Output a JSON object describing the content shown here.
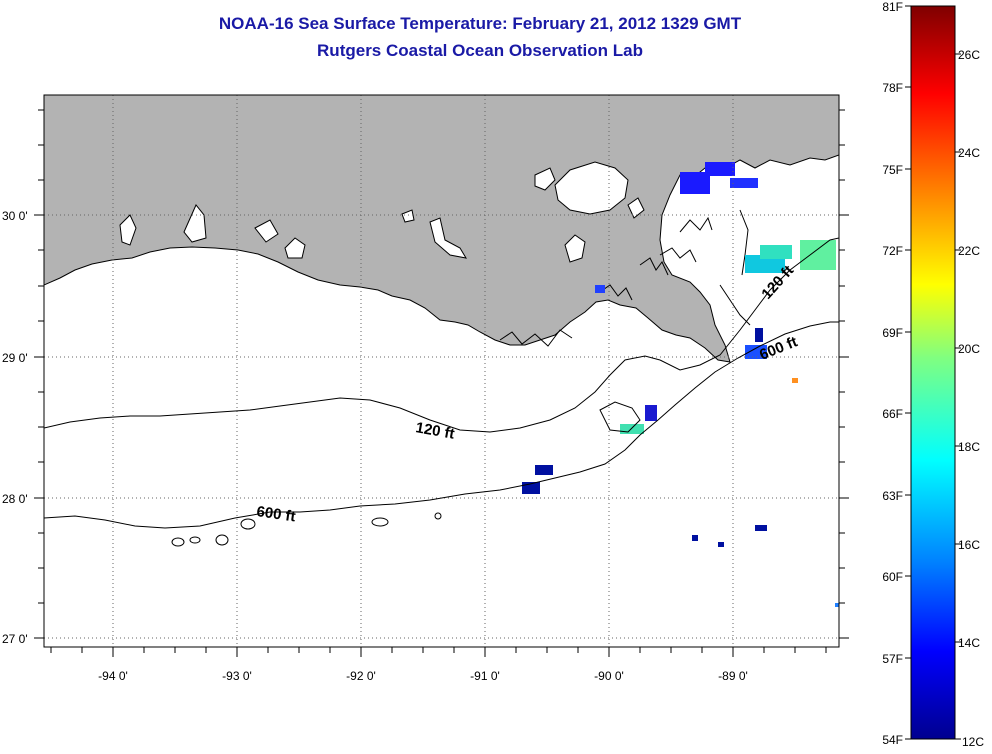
{
  "header": {
    "title_line1": "NOAA-16 Sea Surface Temperature:  February 21, 2012 1329 GMT",
    "title_line2": "Rutgers Coastal Ocean Observation Lab"
  },
  "map": {
    "lat_labels": [
      "30 0'",
      "29 0'",
      "28 0'",
      "27 0'"
    ],
    "lon_labels": [
      "-94 0'",
      "-93 0'",
      "-92 0'",
      "-91 0'",
      "-90 0'",
      "-89 0'"
    ],
    "contour_labels": [
      {
        "text": "120 ft",
        "id": "shelf-120"
      },
      {
        "text": "600 ft",
        "id": "shelf-600"
      },
      {
        "text": "120 ft",
        "id": "delta-120"
      },
      {
        "text": "600 ft",
        "id": "delta-600"
      }
    ],
    "colors": {
      "land": "#b3b3b3",
      "cloud": "#ffffff",
      "grid": "#666666"
    }
  },
  "colorbar": {
    "f_labels": [
      "81F",
      "78F",
      "75F",
      "72F",
      "69F",
      "66F",
      "63F",
      "60F",
      "57F",
      "54F"
    ],
    "c_labels": [
      "26C",
      "24C",
      "22C",
      "20C",
      "18C",
      "16C",
      "14C",
      "12C"
    ],
    "gradient": [
      "#7f0000",
      "#ff0000",
      "#ff8000",
      "#ffff00",
      "#80ff80",
      "#00ffff",
      "#0080ff",
      "#0000ff",
      "#00008f"
    ]
  }
}
